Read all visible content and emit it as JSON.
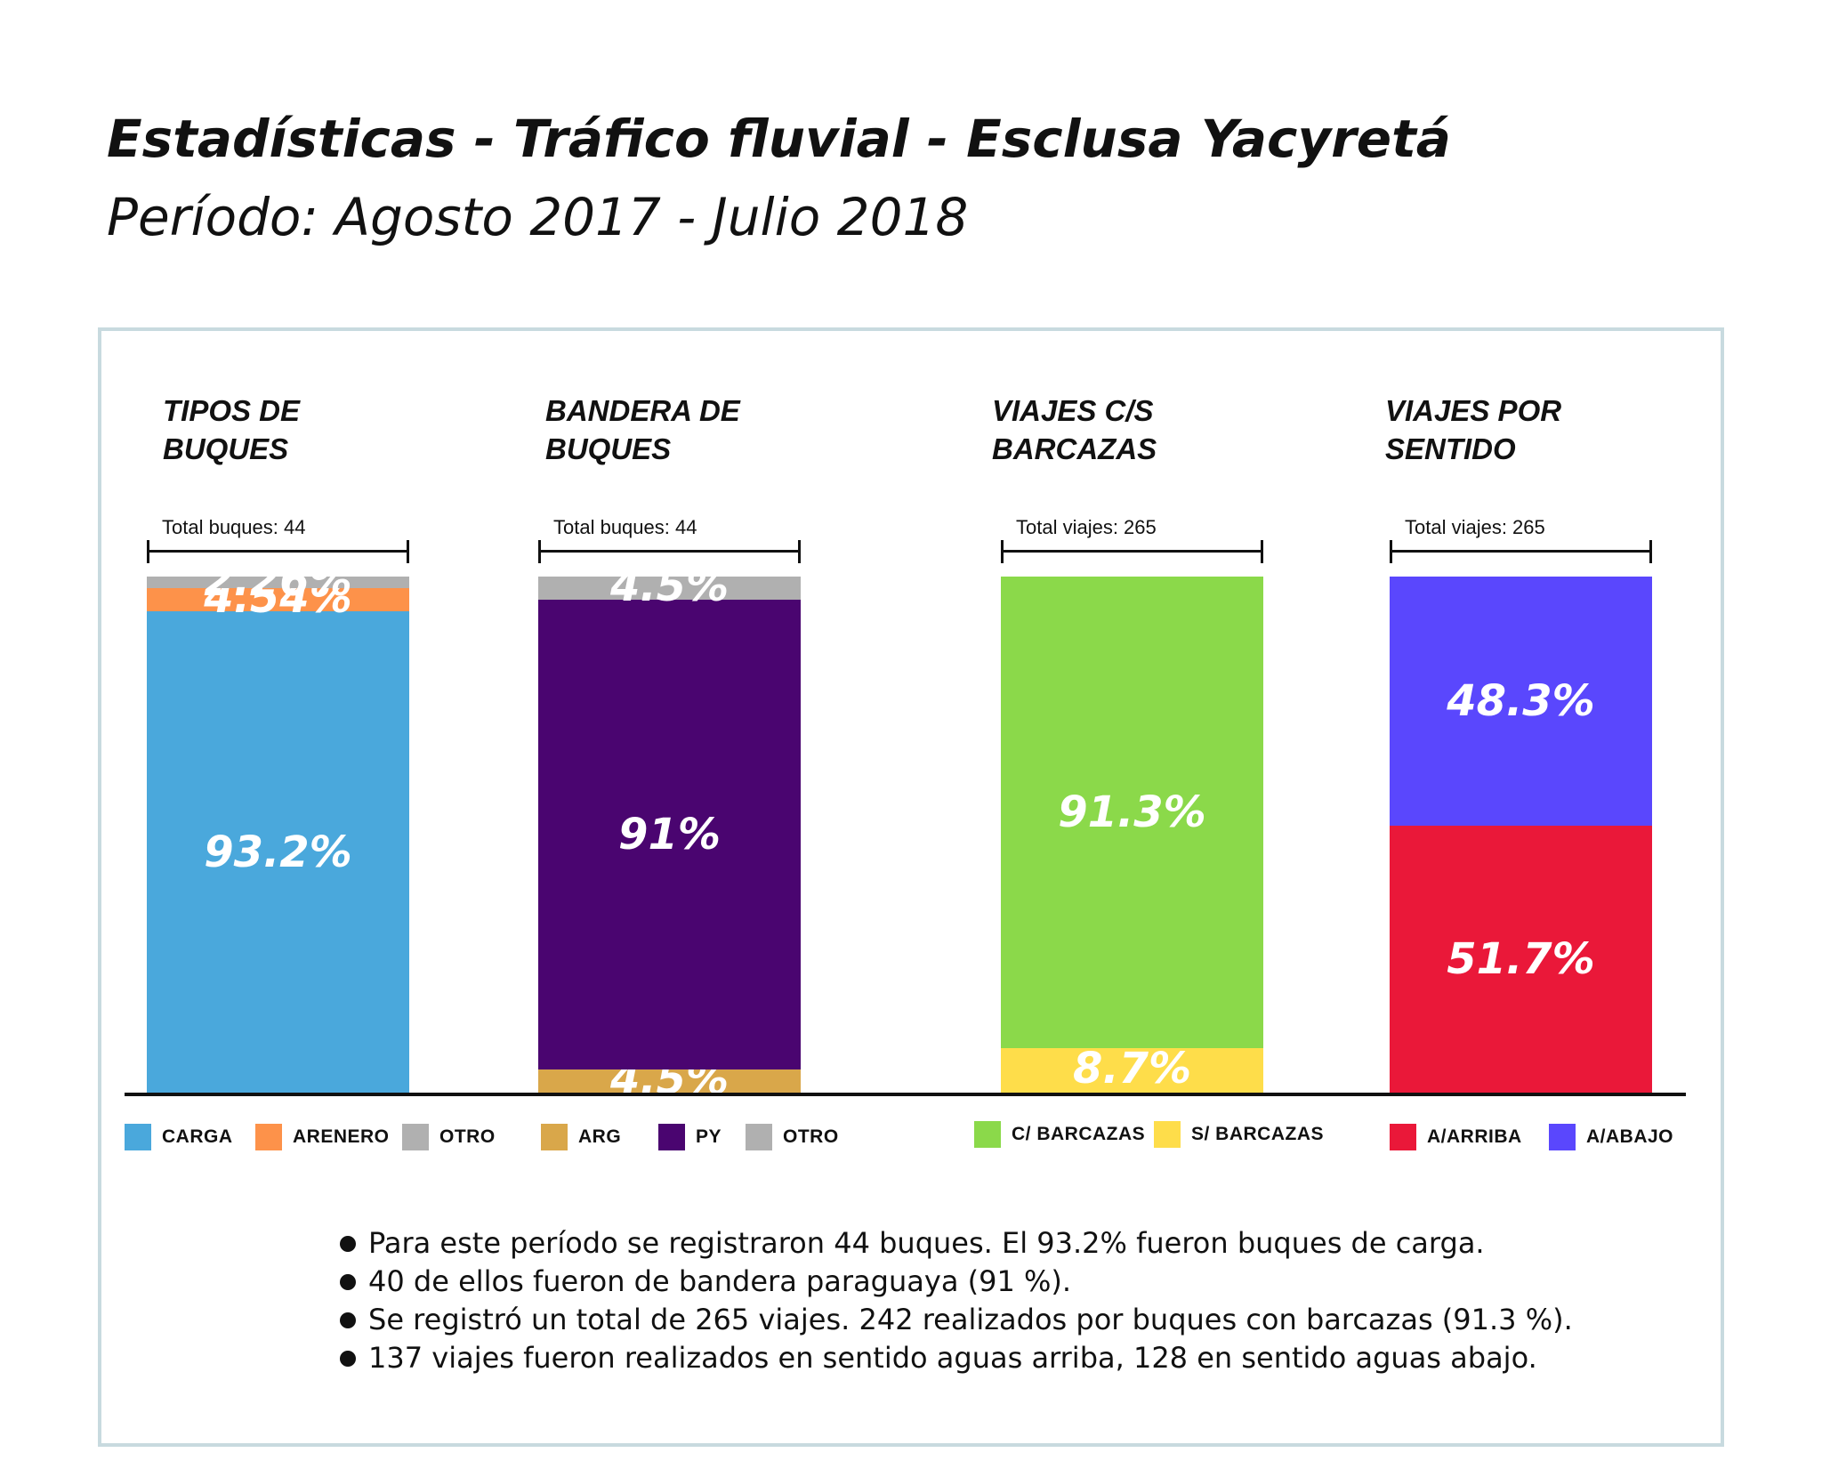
{
  "header": {
    "title": "Estadísticas - Tráfico fluvial - Esclusa Yacyretá",
    "subtitle": "Período: Agosto 2017 - Julio 2018"
  },
  "chart_data": [
    {
      "type": "bar",
      "stacked": true,
      "title_lines": [
        "TIPOS DE",
        "BUQUES"
      ],
      "total_label": "Total buques: 44",
      "segments": [
        {
          "name": "CARGA",
          "value": 93.2,
          "label": "93.2%",
          "color": "#4aa8dc"
        },
        {
          "name": "ARENERO",
          "value": 4.54,
          "label": "4.54%",
          "color": "#fd924a"
        },
        {
          "name": "OTRO",
          "value": 2.26,
          "label": "2.26%",
          "color": "#b0b0b0"
        }
      ]
    },
    {
      "type": "bar",
      "stacked": true,
      "title_lines": [
        "BANDERA DE",
        "BUQUES"
      ],
      "total_label": "Total buques: 44",
      "segments": [
        {
          "name": "ARG",
          "value": 4.5,
          "label": "4.5%",
          "color": "#d9a74a"
        },
        {
          "name": "PY",
          "value": 91,
          "label": "91%",
          "color": "#4a0570"
        },
        {
          "name": "OTRO",
          "value": 4.5,
          "label": "4.5%",
          "color": "#b0b0b0"
        }
      ]
    },
    {
      "type": "bar",
      "stacked": true,
      "title_lines": [
        "VIAJES C/S",
        "BARCAZAS"
      ],
      "total_label": "Total viajes: 265",
      "segments": [
        {
          "name": "S/ BARCAZAS",
          "value": 8.7,
          "label": "8.7%",
          "color": "#fedd4a"
        },
        {
          "name": "C/ BARCAZAS",
          "value": 91.3,
          "label": "91.3%",
          "color": "#8bd94a"
        }
      ]
    },
    {
      "type": "bar",
      "stacked": true,
      "title_lines": [
        "VIAJES POR",
        "SENTIDO"
      ],
      "total_label": "Total viajes: 265",
      "segments": [
        {
          "name": "A/ARRIBA",
          "value": 51.7,
          "label": "51.7%",
          "color": "#ea1839"
        },
        {
          "name": "A/ABAJO",
          "value": 48.3,
          "label": "48.3%",
          "color": "#5a47fd"
        }
      ]
    }
  ],
  "legends": [
    [
      {
        "label": "CARGA",
        "color": "#4aa8dc"
      },
      {
        "label": "ARENERO",
        "color": "#fd924a"
      },
      {
        "label": "OTRO",
        "color": "#b0b0b0"
      }
    ],
    [
      {
        "label": "ARG",
        "color": "#d9a74a"
      },
      {
        "label": "PY",
        "color": "#4a0570"
      },
      {
        "label": "OTRO",
        "color": "#b0b0b0"
      }
    ],
    [
      {
        "label": "C/ BARCAZAS",
        "color": "#8bd94a"
      },
      {
        "label": "S/ BARCAZAS",
        "color": "#fedd4a"
      }
    ],
    [
      {
        "label": "A/ARRIBA",
        "color": "#ea1839"
      },
      {
        "label": "A/ABAJO",
        "color": "#5a47fd"
      }
    ]
  ],
  "notes": [
    "Para este período se registraron 44 buques. El 93.2% fueron buques de carga.",
    "40 de ellos fueron de bandera paraguaya (91 %).",
    "Se registró un total de 265 viajes. 242 realizados por buques con barcazas (91.3 %).",
    "137 viajes fueron realizados en sentido aguas arriba, 128 en sentido aguas abajo."
  ]
}
